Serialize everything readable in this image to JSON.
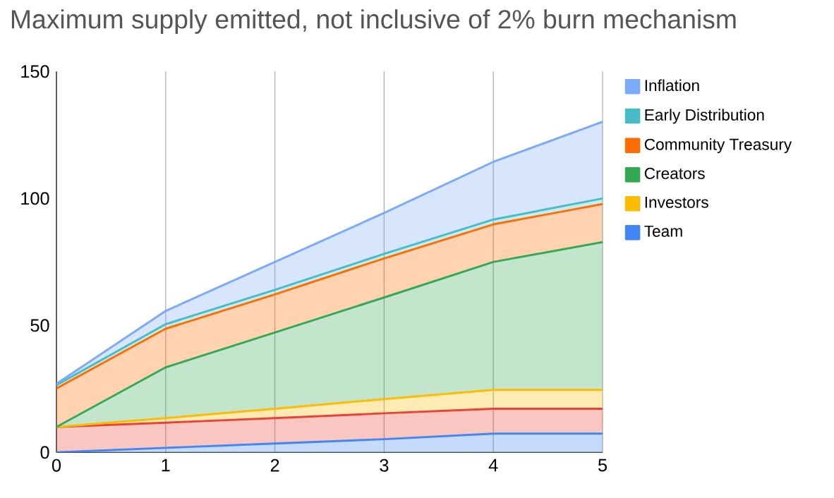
{
  "chart_data": {
    "type": "area",
    "title": "Maximum supply emitted, not inclusive of 2% burn mechanism",
    "stacked": true,
    "x": [
      0,
      1,
      2,
      3,
      4,
      5
    ],
    "xlim": [
      0,
      5
    ],
    "xticks": [
      0,
      1,
      2,
      3,
      4,
      5
    ],
    "ylim": [
      0,
      150
    ],
    "yticks": [
      0,
      50,
      100,
      150
    ],
    "grid": "x",
    "legend": "right",
    "series": [
      {
        "name": "Team",
        "color": "#4285f4",
        "values": [
          0,
          1.8,
          3.5,
          5.2,
          7.4,
          7.4
        ]
      },
      {
        "color": "#ea4335",
        "values": [
          10,
          9.9,
          10,
          10.2,
          9.8,
          9.8
        ]
      },
      {
        "name": "Investors",
        "color": "#fbbc04",
        "values": [
          0,
          1.8,
          3.7,
          5.6,
          7.4,
          7.4
        ]
      },
      {
        "name": "Creators",
        "color": "#34a853",
        "values": [
          0,
          20,
          30,
          40,
          50.4,
          58.2
        ]
      },
      {
        "name": "Community Treasury",
        "color": "#ff6d01",
        "values": [
          15.2,
          15.2,
          15,
          15.4,
          14.8,
          15
        ]
      },
      {
        "name": "Early Distribution",
        "color": "#46bdc6",
        "values": [
          1.3,
          1.8,
          1.8,
          1.8,
          1.9,
          2.2
        ]
      },
      {
        "name": "Inflation",
        "color": "#7baaf7",
        "values": [
          0.5,
          5.2,
          11,
          16.1,
          22.7,
          30.2
        ]
      }
    ]
  }
}
